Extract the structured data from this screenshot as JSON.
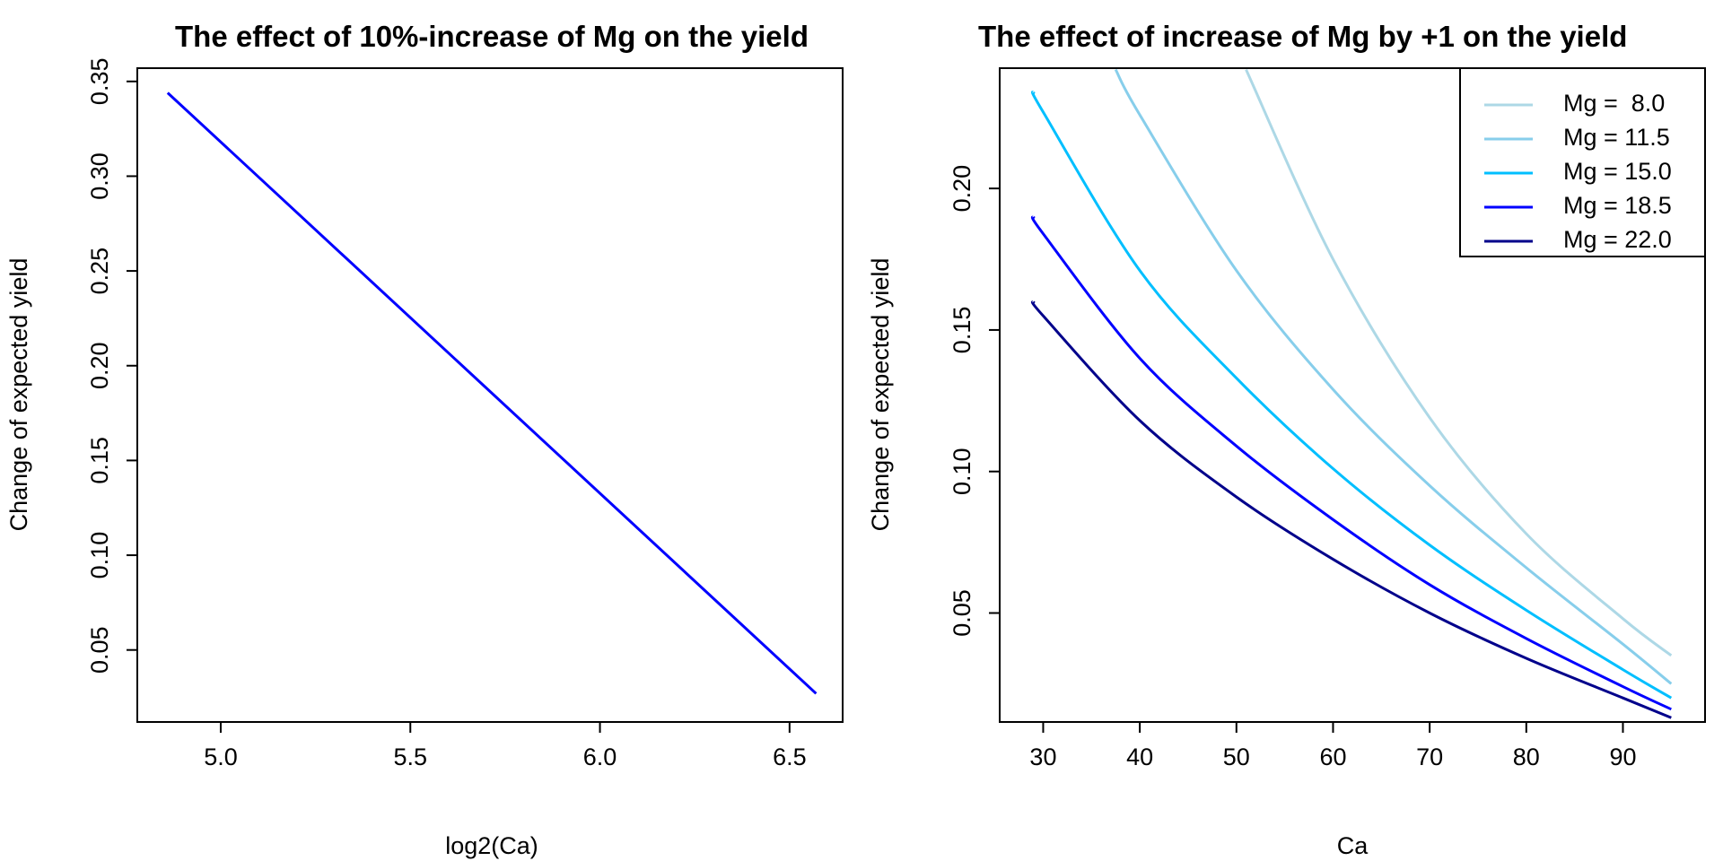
{
  "chart_data": [
    {
      "type": "line",
      "title": "The effect of 10%-increase of Mg on the yield",
      "xlabel": "log2(Ca)",
      "ylabel": "Change of expected yield",
      "xlim": [
        4.78,
        6.64
      ],
      "ylim": [
        0.012,
        0.357
      ],
      "xticks": [
        5.0,
        5.5,
        6.0,
        6.5
      ],
      "xtick_labels": [
        "5.0",
        "5.5",
        "6.0",
        "6.5"
      ],
      "yticks": [
        0.05,
        0.1,
        0.15,
        0.2,
        0.25,
        0.3,
        0.35
      ],
      "ytick_labels": [
        "0.05",
        "0.10",
        "0.15",
        "0.20",
        "0.25",
        "0.30",
        "0.35"
      ],
      "grid": false,
      "series": [
        {
          "color": "#0000ff",
          "x": [
            4.86,
            6.57
          ],
          "y": [
            0.344,
            0.027
          ]
        }
      ]
    },
    {
      "type": "line",
      "title": "The effect of increase of Mg by +1 on the yield",
      "xlabel": "Ca",
      "ylabel": "Change of expected yield",
      "xlim": [
        25.5,
        98.5
      ],
      "ylim": [
        0.0115,
        0.2425
      ],
      "xticks": [
        30,
        40,
        50,
        60,
        70,
        80,
        90
      ],
      "xtick_labels": [
        "30",
        "40",
        "50",
        "60",
        "70",
        "80",
        "90"
      ],
      "yticks": [
        0.05,
        0.1,
        0.15,
        0.2
      ],
      "ytick_labels": [
        "0.05",
        "0.10",
        "0.15",
        "0.20"
      ],
      "grid": false,
      "legend_position": "top-right",
      "series": [
        {
          "name": "Mg =  8.0",
          "color": "#add8e6",
          "x": [
            51,
            60,
            70,
            80,
            90,
            95
          ],
          "y": [
            0.242,
            0.175,
            0.119,
            0.078,
            0.048,
            0.035
          ]
        },
        {
          "name": "Mg = 11.5",
          "color": "#87ceeb",
          "x": [
            37.5,
            40,
            50,
            60,
            70,
            80,
            90,
            95
          ],
          "y": [
            0.242,
            0.226,
            0.171,
            0.129,
            0.095,
            0.066,
            0.039,
            0.025
          ]
        },
        {
          "name": "Mg = 15.0",
          "color": "#00bfff",
          "x": [
            29,
            30,
            40,
            50,
            60,
            70,
            80,
            90,
            95
          ],
          "y": [
            0.234,
            0.227,
            0.171,
            0.133,
            0.101,
            0.074,
            0.051,
            0.03,
            0.02
          ]
        },
        {
          "name": "Mg = 18.5",
          "color": "#0000ff",
          "x": [
            29,
            30,
            40,
            50,
            60,
            70,
            80,
            90,
            95
          ],
          "y": [
            0.19,
            0.184,
            0.14,
            0.109,
            0.083,
            0.06,
            0.041,
            0.024,
            0.016
          ]
        },
        {
          "name": "Mg = 22.0",
          "color": "#00008b",
          "x": [
            29,
            30,
            40,
            50,
            60,
            70,
            80,
            90,
            95
          ],
          "y": [
            0.16,
            0.155,
            0.118,
            0.091,
            0.069,
            0.05,
            0.034,
            0.02,
            0.013
          ]
        }
      ]
    }
  ]
}
